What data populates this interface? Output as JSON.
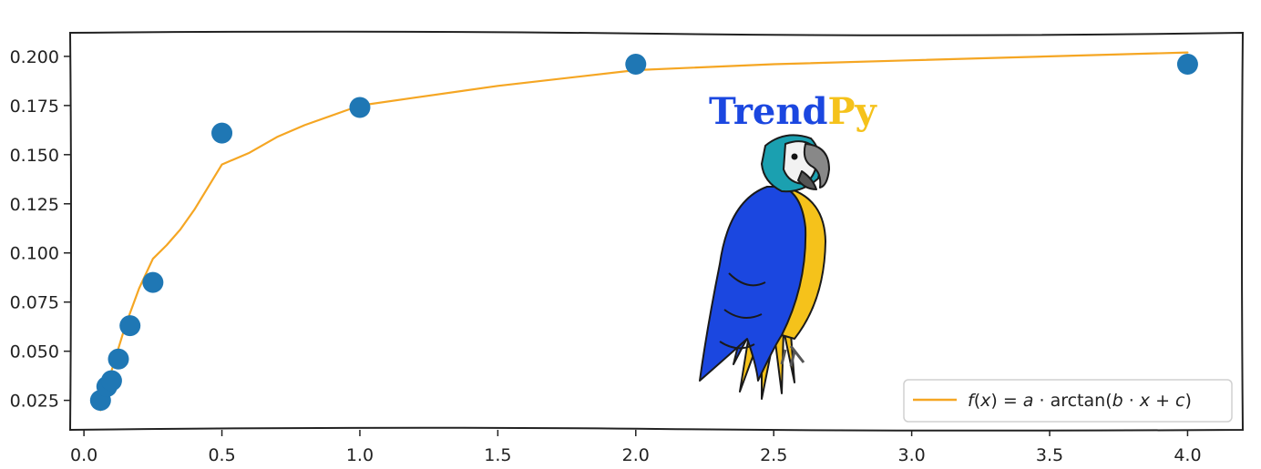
{
  "chart_data": {
    "type": "scatter",
    "title": "",
    "xlabel": "",
    "ylabel": "",
    "xlim": [
      -0.05,
      4.2
    ],
    "ylim": [
      0.01,
      0.212
    ],
    "x_ticks": [
      "0.0",
      "0.5",
      "1.0",
      "1.5",
      "2.0",
      "2.5",
      "3.0",
      "3.5",
      "4.0"
    ],
    "y_ticks": [
      "0.025",
      "0.050",
      "0.075",
      "0.100",
      "0.125",
      "0.150",
      "0.175",
      "0.200"
    ],
    "grid": false,
    "legend_position": "bottom-right",
    "colors": {
      "points": "#1f77b4",
      "fit": "#f5a623",
      "logo_blue": "#1b47e0",
      "logo_yellow": "#f5c21b"
    },
    "series": [
      {
        "kind": "scatter",
        "x": [
          0.06,
          0.083,
          0.1,
          0.125,
          0.167,
          0.25,
          0.5,
          1.0,
          2.0,
          4.0
        ],
        "y": [
          0.025,
          0.032,
          0.035,
          0.046,
          0.063,
          0.085,
          0.161,
          0.174,
          0.196,
          0.196
        ]
      },
      {
        "kind": "line",
        "name": "f(x) = a · arctan(b · x + c)",
        "x": [
          0.06,
          0.1,
          0.15,
          0.2,
          0.25,
          0.3,
          0.35,
          0.4,
          0.5,
          0.6,
          0.7,
          0.8,
          1.0,
          1.2,
          1.5,
          2.0,
          2.5,
          3.0,
          3.5,
          4.0
        ],
        "y": [
          0.02,
          0.04,
          0.063,
          0.082,
          0.097,
          0.104,
          0.112,
          0.122,
          0.145,
          0.151,
          0.159,
          0.165,
          0.175,
          0.179,
          0.185,
          0.193,
          0.196,
          0.198,
          0.2,
          0.202
        ]
      }
    ],
    "legend": {
      "name_html_parts": [
        "f",
        "(",
        "x",
        ") = ",
        "a",
        " · arctan(",
        "b",
        " · ",
        "x",
        " + ",
        "c",
        ")"
      ]
    }
  },
  "logo": {
    "part1": "Trend",
    "part2": "Py"
  }
}
